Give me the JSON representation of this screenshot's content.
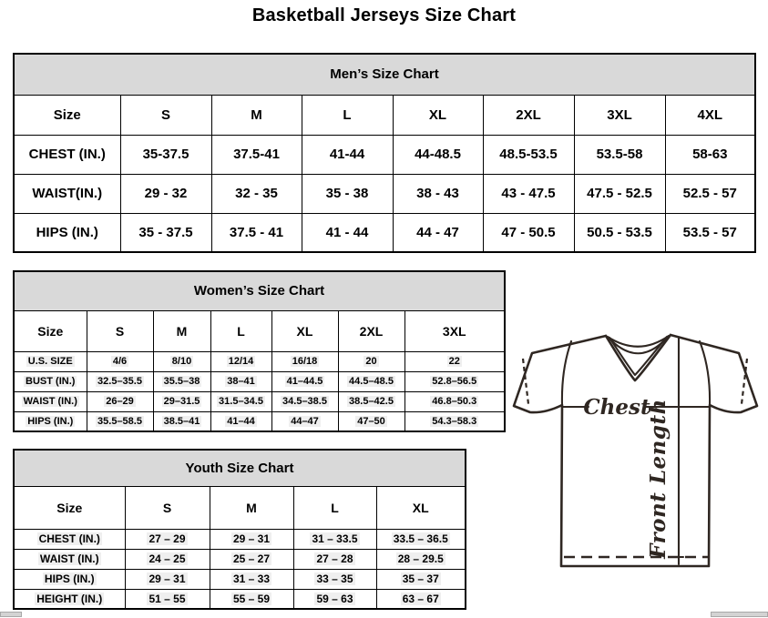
{
  "page": {
    "title": "Basketball Jerseys Size Chart"
  },
  "tables": [
    {
      "title": "Men’s Size Chart",
      "columns": [
        "Size",
        "S",
        "M",
        "L",
        "XL",
        "2XL",
        "3XL",
        "4XL"
      ],
      "rows": [
        {
          "label": "CHEST (IN.)",
          "values": [
            "35-37.5",
            "37.5-41",
            "41-44",
            "44-48.5",
            "48.5-53.5",
            "53.5-58",
            "58-63"
          ]
        },
        {
          "label": "WAIST(IN.)",
          "values": [
            "29 - 32",
            "32 - 35",
            "35 - 38",
            "38 - 43",
            "43 - 47.5",
            "47.5 - 52.5",
            "52.5 - 57"
          ]
        },
        {
          "label": "HIPS (IN.)",
          "values": [
            "35 - 37.5",
            "37.5 - 41",
            "41 - 44",
            "44 - 47",
            "47 - 50.5",
            "50.5 - 53.5",
            "53.5 - 57"
          ]
        }
      ]
    },
    {
      "title": "Women’s Size Chart",
      "columns": [
        "Size",
        "S",
        "M",
        "L",
        "XL",
        "2XL",
        "3XL"
      ],
      "rows": [
        {
          "label": "U.S. SIZE",
          "values": [
            "4/6",
            "8/10",
            "12/14",
            "16/18",
            "20",
            "22"
          ]
        },
        {
          "label": "BUST (IN.)",
          "values": [
            "32.5–35.5",
            "35.5–38",
            "38–41",
            "41–44.5",
            "44.5–48.5",
            "52.8–56.5"
          ]
        },
        {
          "label": "WAIST (IN.)",
          "values": [
            "26–29",
            "29–31.5",
            "31.5–34.5",
            "34.5–38.5",
            "38.5–42.5",
            "46.8–50.3"
          ]
        },
        {
          "label": "HIPS (IN.)",
          "values": [
            "35.5–58.5",
            "38.5–41",
            "41–44",
            "44–47",
            "47–50",
            "54.3–58.3"
          ]
        }
      ]
    },
    {
      "title": "Youth Size Chart",
      "columns": [
        "Size",
        "S",
        "M",
        "L",
        "XL"
      ],
      "rows": [
        {
          "label": "CHEST (IN.)",
          "values": [
            "27 – 29",
            "29 – 31",
            "31 – 33.5",
            "33.5 – 36.5"
          ]
        },
        {
          "label": "WAIST (IN.)",
          "values": [
            "24 – 25",
            "25 – 27",
            "27 – 28",
            "28 – 29.5"
          ]
        },
        {
          "label": "HIPS (IN.)",
          "values": [
            "29 – 31",
            "31 – 33",
            "33 – 35",
            "35 – 37"
          ]
        },
        {
          "label": "HEIGHT (IN.)",
          "values": [
            "51 – 55",
            "55 – 59",
            "59 – 63",
            "63 – 67"
          ]
        }
      ]
    }
  ],
  "diagram": {
    "chest_label": "Chest",
    "front_length_label": "Front Length"
  },
  "colors": {
    "table_header_bg": "#d9d9d9",
    "table_border": "#000000",
    "diagram_line": "#2f2722"
  }
}
